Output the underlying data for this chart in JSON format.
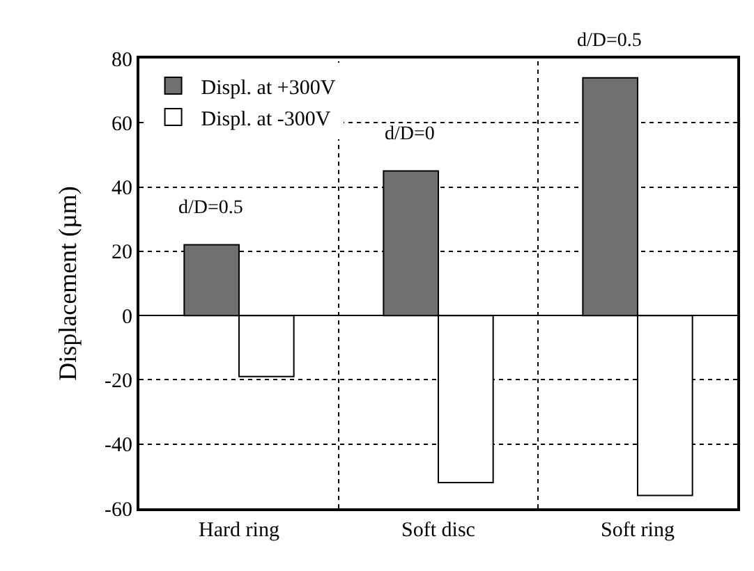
{
  "chart_data": {
    "type": "bar",
    "ylabel": "Displacement (µm)",
    "categories": [
      "Hard ring",
      "Soft disc",
      "Soft ring"
    ],
    "series": [
      {
        "name": "Displ. at +300V",
        "color": "#707070",
        "values": [
          22,
          45,
          74
        ]
      },
      {
        "name": "Displ. at -300V",
        "color": "#ffffff",
        "values": [
          -19,
          -52,
          -56
        ]
      }
    ],
    "ylim": [
      -60,
      80
    ],
    "yticks": [
      -60,
      -40,
      -20,
      0,
      20,
      40,
      60,
      80
    ],
    "grid": true,
    "legend": "top left",
    "annotations": [
      {
        "text": "d/D=0.5",
        "x": "Hard ring",
        "y": 22
      },
      {
        "text": "d/D=0",
        "x": "Soft disc",
        "y": 45
      },
      {
        "text": "d/D=0.5",
        "x": "Soft ring",
        "y": 74
      }
    ]
  }
}
